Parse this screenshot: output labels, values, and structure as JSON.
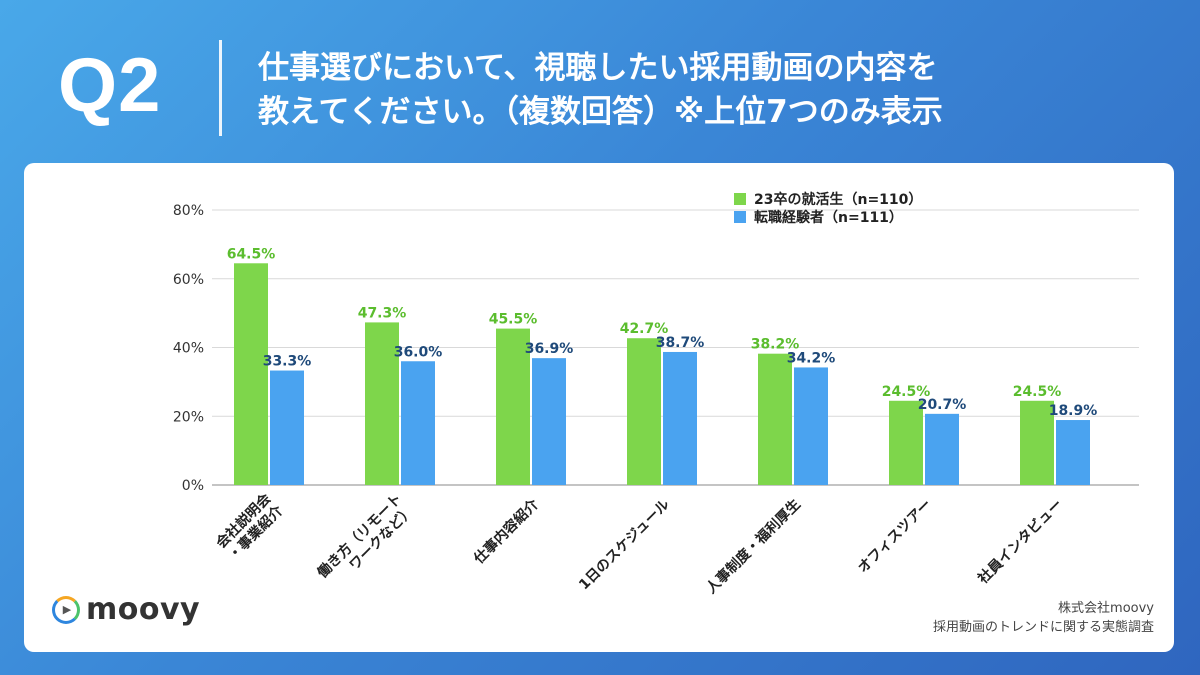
{
  "header": {
    "q_label": "Q2",
    "title_line1": "仕事選びにおいて、視聴したい採用動画の内容を",
    "title_line2": "教えてください。（複数回答）※上位7つのみ表示"
  },
  "brand": {
    "logo_text": "moovy"
  },
  "source": {
    "line1": "株式会社moovy",
    "line2": "採用動画のトレンドに関する実態調査"
  },
  "colors": {
    "series1": "#7ed64b",
    "series2": "#4aa3f0",
    "label1": "#5bbd2e",
    "label2": "#1f4a7a"
  },
  "chart_data": {
    "type": "bar",
    "title": "",
    "xlabel": "",
    "ylabel": "",
    "ylim": [
      0,
      80
    ],
    "yticks": [
      "0%",
      "20%",
      "40%",
      "60%",
      "80%"
    ],
    "grid": true,
    "legend_position": "top-right",
    "categories": [
      [
        "会社説明会",
        "・事業紹介"
      ],
      [
        "働き方（リモート",
        "ワークなど）"
      ],
      [
        "仕事内容紹介"
      ],
      [
        "1日のスケジュール"
      ],
      [
        "人事制度・福利厚生"
      ],
      [
        "オフィスツアー"
      ],
      [
        "社員インタビュー"
      ]
    ],
    "series": [
      {
        "name": "23卒の就活生（n=110）",
        "values": [
          64.5,
          47.3,
          45.5,
          42.7,
          38.2,
          24.5,
          24.5
        ],
        "labels": [
          "64.5%",
          "47.3%",
          "45.5%",
          "42.7%",
          "38.2%",
          "24.5%",
          "24.5%"
        ]
      },
      {
        "name": "転職経験者（n=111）",
        "values": [
          33.3,
          36.0,
          36.9,
          38.7,
          34.2,
          20.7,
          18.9
        ],
        "labels": [
          "33.3%",
          "36.0%",
          "36.9%",
          "38.7%",
          "34.2%",
          "20.7%",
          "18.9%"
        ]
      }
    ]
  }
}
